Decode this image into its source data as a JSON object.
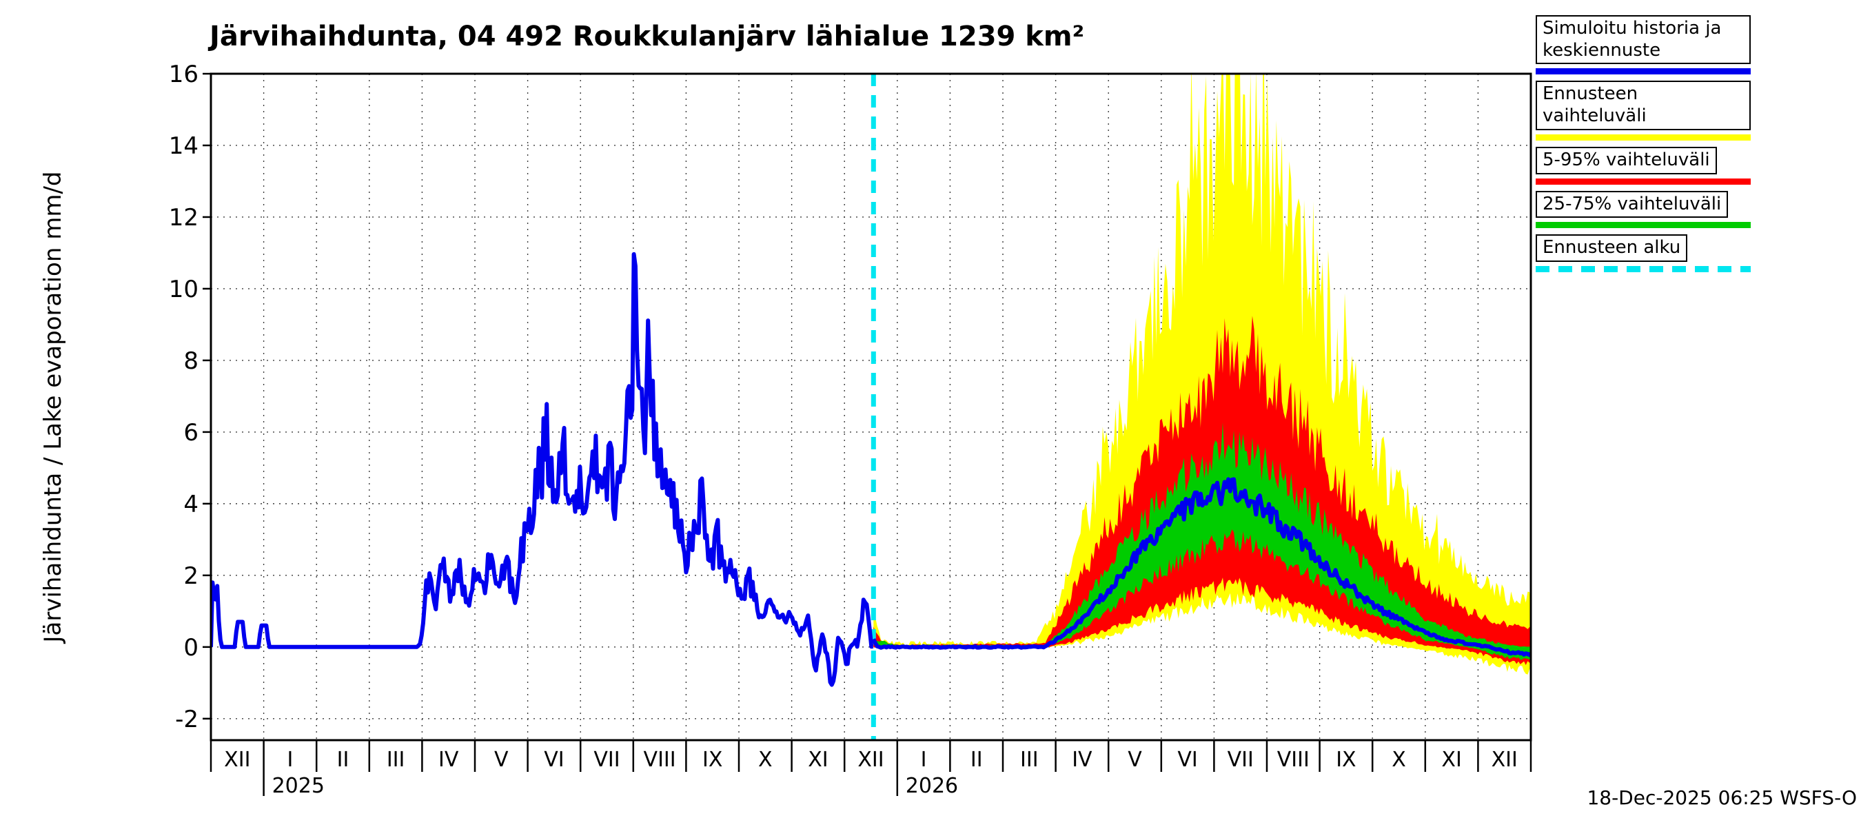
{
  "title": "Järvihaihdunta, 04 492 Roukkulanjärv lähialue 1239 km²",
  "footer": {
    "timestamp": "18-Dec-2025 06:25 WSFS-O"
  },
  "legend": {
    "items": [
      {
        "label": "Simuloitu historia ja keskiennuste",
        "color": "#0000ee",
        "style": "solid"
      },
      {
        "label": "Ennusteen vaihteluväli",
        "color": "#ffff00",
        "style": "solid"
      },
      {
        "label": "5-95% vaihteluväli",
        "color": "#ff0000",
        "style": "solid"
      },
      {
        "label": "25-75% vaihteluväli",
        "color": "#00cc00",
        "style": "solid"
      },
      {
        "label": "Ennusteen alku",
        "color": "#00e6f0",
        "style": "dashed"
      }
    ]
  },
  "chart_data": {
    "type": "line",
    "title": "Järvihaihdunta, 04 492 Roukkulanjärv lähialue 1239 km²",
    "ylabel": "Järvihaihdunta / Lake evaporation    mm/d",
    "ylim": [
      -2.6,
      16
    ],
    "y_ticks": [
      -2,
      0,
      2,
      4,
      6,
      8,
      10,
      12,
      14,
      16
    ],
    "x_months": [
      "XII",
      "I",
      "II",
      "III",
      "IV",
      "V",
      "VI",
      "VII",
      "VIII",
      "IX",
      "X",
      "XI",
      "XII",
      "I",
      "II",
      "III",
      "IV",
      "V",
      "VI",
      "VII",
      "VIII",
      "IX",
      "X",
      "XI",
      "XII"
    ],
    "year_labels": [
      {
        "label": "2025",
        "month_index": 1
      },
      {
        "label": "2026",
        "month_index": 13
      }
    ],
    "forecast_start_month": 12.55,
    "grid": true,
    "legend_position": "top-right",
    "colors": {
      "history": "#0000ee",
      "yellow": "#ffff00",
      "red": "#ff0000",
      "green": "#00cc00",
      "forecast_start": "#00e6f0",
      "grid": "#3a3a3a"
    },
    "series": {
      "history": {
        "name": "Simuloitu historia ja keskiennuste",
        "units": "mm/d",
        "points": [
          [
            0,
            0
          ],
          [
            0.03,
            1.8
          ],
          [
            0.08,
            1.2
          ],
          [
            0.12,
            1.7
          ],
          [
            0.16,
            0.4
          ],
          [
            0.2,
            0
          ],
          [
            0.45,
            0
          ],
          [
            0.5,
            0.7
          ],
          [
            0.6,
            0.7
          ],
          [
            0.65,
            0
          ],
          [
            0.9,
            0
          ],
          [
            0.95,
            0.6
          ],
          [
            1.05,
            0.6
          ],
          [
            1.1,
            0
          ],
          [
            3.92,
            0
          ],
          [
            4.0,
            0.3
          ],
          [
            4.1,
            1.9
          ],
          [
            4.25,
            1.2
          ],
          [
            4.4,
            2.3
          ],
          [
            4.55,
            1.4
          ],
          [
            4.7,
            2.1
          ],
          [
            4.85,
            1.1
          ],
          [
            5.0,
            2.2
          ],
          [
            5.15,
            1.5
          ],
          [
            5.3,
            2.6
          ],
          [
            5.45,
            1.7
          ],
          [
            5.6,
            2.4
          ],
          [
            5.75,
            1.2
          ],
          [
            5.9,
            2.8
          ],
          [
            6.05,
            3.4
          ],
          [
            6.2,
            4.6
          ],
          [
            6.35,
            5.9
          ],
          [
            6.5,
            4.3
          ],
          [
            6.65,
            5.6
          ],
          [
            6.8,
            4.1
          ],
          [
            6.95,
            4.8
          ],
          [
            7.1,
            3.2
          ],
          [
            7.25,
            5.4
          ],
          [
            7.4,
            4.2
          ],
          [
            7.55,
            5.2
          ],
          [
            7.7,
            4.0
          ],
          [
            7.85,
            5.8
          ],
          [
            7.95,
            6.4
          ],
          [
            8.02,
            10.0
          ],
          [
            8.1,
            7.2
          ],
          [
            8.2,
            5.9
          ],
          [
            8.3,
            8.1
          ],
          [
            8.42,
            6.2
          ],
          [
            8.55,
            5.0
          ],
          [
            8.7,
            4.2
          ],
          [
            8.85,
            3.4
          ],
          [
            9.0,
            2.6
          ],
          [
            9.15,
            3.2
          ],
          [
            9.3,
            4.3
          ],
          [
            9.45,
            2.4
          ],
          [
            9.6,
            3.0
          ],
          [
            9.75,
            1.8
          ],
          [
            9.9,
            2.2
          ],
          [
            10.05,
            1.2
          ],
          [
            10.2,
            1.9
          ],
          [
            10.4,
            0.8
          ],
          [
            10.6,
            1.5
          ],
          [
            10.8,
            0.7
          ],
          [
            11.0,
            1.0
          ],
          [
            11.15,
            0.2
          ],
          [
            11.3,
            0.9
          ],
          [
            11.45,
            -0.6
          ],
          [
            11.6,
            0.5
          ],
          [
            11.75,
            -1.2
          ],
          [
            11.9,
            0.3
          ],
          [
            12.05,
            -0.4
          ],
          [
            12.15,
            0.1
          ],
          [
            12.25,
            0.0
          ],
          [
            12.4,
            1.6
          ],
          [
            12.5,
            0.1
          ],
          [
            12.55,
            0.0
          ]
        ]
      },
      "forecast_median": {
        "name": "Keskiennuste",
        "points": [
          [
            12.55,
            0.2
          ],
          [
            12.62,
            0
          ],
          [
            15.8,
            0
          ],
          [
            16.2,
            0.4
          ],
          [
            16.6,
            0.9
          ],
          [
            17.0,
            1.6
          ],
          [
            17.4,
            2.3
          ],
          [
            17.8,
            3.0
          ],
          [
            18.2,
            3.6
          ],
          [
            18.6,
            4.0
          ],
          [
            19.0,
            4.3
          ],
          [
            19.4,
            4.4
          ],
          [
            19.8,
            4.0
          ],
          [
            20.2,
            3.5
          ],
          [
            20.6,
            3.0
          ],
          [
            21.0,
            2.4
          ],
          [
            21.4,
            1.9
          ],
          [
            21.8,
            1.4
          ],
          [
            22.2,
            1.0
          ],
          [
            22.6,
            0.7
          ],
          [
            23.0,
            0.4
          ],
          [
            23.4,
            0.2
          ],
          [
            23.8,
            0.1
          ],
          [
            24.2,
            0
          ],
          [
            24.6,
            -0.15
          ],
          [
            25,
            -0.2
          ]
        ]
      },
      "band_yellow": {
        "name": "Ennusteen vaihteluväli",
        "hi": [
          [
            12.55,
            0.9
          ],
          [
            12.7,
            0.15
          ],
          [
            13,
            0.1
          ],
          [
            15.6,
            0.1
          ],
          [
            16.0,
            1.0
          ],
          [
            16.4,
            2.8
          ],
          [
            17.0,
            5.5
          ],
          [
            17.6,
            8.0
          ],
          [
            18.2,
            10.5
          ],
          [
            18.8,
            13.0
          ],
          [
            19.2,
            14.6
          ],
          [
            19.5,
            15.2
          ],
          [
            19.9,
            13.8
          ],
          [
            20.4,
            12.0
          ],
          [
            21.0,
            9.5
          ],
          [
            21.6,
            7.0
          ],
          [
            22.2,
            5.0
          ],
          [
            22.8,
            3.6
          ],
          [
            23.4,
            2.6
          ],
          [
            24.0,
            1.9
          ],
          [
            24.6,
            1.4
          ],
          [
            25,
            1.2
          ]
        ],
        "lo": [
          [
            12.55,
            0
          ],
          [
            15.8,
            0
          ],
          [
            16.2,
            0.05
          ],
          [
            17.0,
            0.3
          ],
          [
            17.8,
            0.7
          ],
          [
            18.6,
            1.1
          ],
          [
            19.2,
            1.3
          ],
          [
            19.8,
            1.2
          ],
          [
            20.6,
            0.8
          ],
          [
            21.4,
            0.4
          ],
          [
            22.2,
            0.1
          ],
          [
            23.0,
            -0.1
          ],
          [
            23.8,
            -0.3
          ],
          [
            24.6,
            -0.6
          ],
          [
            25,
            -0.65
          ]
        ]
      },
      "band_red": {
        "name": "5-95% vaihteluväli",
        "hi": [
          [
            12.55,
            0.6
          ],
          [
            12.7,
            0.1
          ],
          [
            13,
            0.05
          ],
          [
            15.8,
            0.1
          ],
          [
            16.2,
            1.2
          ],
          [
            17.0,
            3.4
          ],
          [
            17.8,
            5.2
          ],
          [
            18.6,
            6.8
          ],
          [
            19.2,
            8.0
          ],
          [
            19.6,
            8.3
          ],
          [
            20.0,
            7.6
          ],
          [
            20.6,
            6.4
          ],
          [
            21.4,
            4.6
          ],
          [
            22.2,
            3.0
          ],
          [
            23.0,
            1.8
          ],
          [
            23.8,
            1.0
          ],
          [
            24.6,
            0.6
          ],
          [
            25,
            0.5
          ]
        ],
        "lo": [
          [
            12.55,
            0
          ],
          [
            15.8,
            0
          ],
          [
            16.2,
            0.1
          ],
          [
            17.0,
            0.5
          ],
          [
            17.8,
            1.0
          ],
          [
            18.6,
            1.5
          ],
          [
            19.2,
            1.8
          ],
          [
            19.8,
            1.6
          ],
          [
            20.6,
            1.2
          ],
          [
            21.4,
            0.7
          ],
          [
            22.2,
            0.3
          ],
          [
            23.0,
            0.05
          ],
          [
            23.8,
            -0.1
          ],
          [
            24.6,
            -0.4
          ],
          [
            25,
            -0.45
          ]
        ]
      },
      "band_green": {
        "name": "25-75% vaihteluväli",
        "hi": [
          [
            12.55,
            0.2
          ],
          [
            13,
            0.05
          ],
          [
            15.8,
            0.05
          ],
          [
            16.2,
            0.6
          ],
          [
            17.0,
            2.2
          ],
          [
            17.8,
            3.8
          ],
          [
            18.6,
            5.0
          ],
          [
            19.2,
            5.7
          ],
          [
            19.8,
            5.2
          ],
          [
            20.6,
            4.2
          ],
          [
            21.4,
            3.0
          ],
          [
            22.2,
            1.8
          ],
          [
            23.0,
            0.8
          ],
          [
            23.8,
            0.3
          ],
          [
            24.6,
            0.05
          ],
          [
            25,
            0
          ]
        ],
        "lo": [
          [
            12.55,
            0.05
          ],
          [
            13,
            0
          ],
          [
            15.8,
            0
          ],
          [
            16.2,
            0.2
          ],
          [
            17.0,
            1.0
          ],
          [
            17.8,
            1.9
          ],
          [
            18.6,
            2.6
          ],
          [
            19.2,
            3.0
          ],
          [
            19.8,
            2.8
          ],
          [
            20.6,
            2.2
          ],
          [
            21.4,
            1.4
          ],
          [
            22.2,
            0.7
          ],
          [
            23.0,
            0.2
          ],
          [
            23.8,
            0
          ],
          [
            24.6,
            -0.3
          ],
          [
            25,
            -0.35
          ]
        ]
      }
    },
    "render": {
      "seed": 20251218,
      "history_step": 0.03,
      "forecast_step": 0.035,
      "noise": {
        "history": 0.4,
        "yellow": 0.2,
        "red": 0.15,
        "green": 0.12,
        "median": 0.08
      }
    }
  }
}
